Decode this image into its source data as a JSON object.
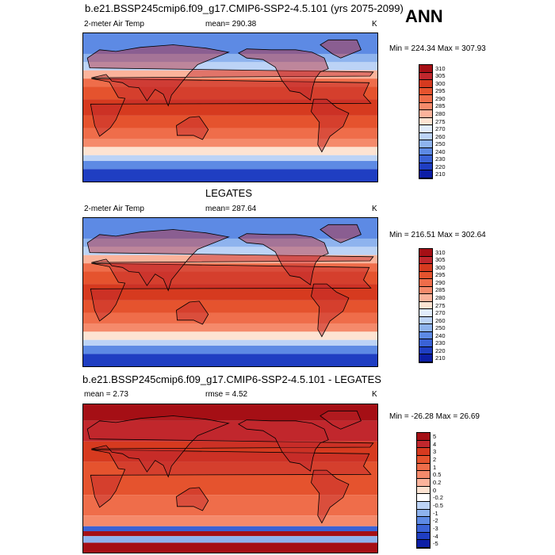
{
  "ann_label": "ANN",
  "panels": [
    {
      "title": "b.e21.BSSP245cmip6.f09_g17.CMIP6-SSP2-4.5.101 (yrs 2075-2099)",
      "left": "2-meter Air Temp",
      "center": "mean= 290.38",
      "right": "K",
      "minmax": "Min = 224.34 Max = 307.93",
      "kind": "abs",
      "levels": [
        "310",
        "305",
        "300",
        "295",
        "290",
        "285",
        "280",
        "275",
        "270",
        "260",
        "250",
        "240",
        "230",
        "220",
        "210"
      ],
      "colors": [
        "#a50f15",
        "#c1272d",
        "#d63a1f",
        "#e5532e",
        "#ef6d4a",
        "#f58a6b",
        "#fbb39b",
        "#fde3d2",
        "#e1ecfb",
        "#bcd3f6",
        "#8eb3ee",
        "#5d8ae4",
        "#3a62d6",
        "#1f3ec2",
        "#0c1ea6"
      ]
    },
    {
      "title": "LEGATES",
      "left": "2-meter Air Temp",
      "center": "mean= 287.64",
      "right": "K",
      "minmax": "Min = 216.51 Max = 302.64",
      "kind": "abs",
      "levels": [
        "310",
        "305",
        "300",
        "295",
        "290",
        "285",
        "280",
        "275",
        "270",
        "260",
        "250",
        "240",
        "230",
        "220",
        "210"
      ],
      "colors": [
        "#a50f15",
        "#c1272d",
        "#d63a1f",
        "#e5532e",
        "#ef6d4a",
        "#f58a6b",
        "#fbb39b",
        "#fde3d2",
        "#e1ecfb",
        "#bcd3f6",
        "#8eb3ee",
        "#5d8ae4",
        "#3a62d6",
        "#1f3ec2",
        "#0c1ea6"
      ]
    },
    {
      "title": "b.e21.BSSP245cmip6.f09_g17.CMIP6-SSP2-4.5.101 - LEGATES",
      "left": "mean =   2.73",
      "center": "rmse =   4.52",
      "right": "K",
      "minmax": "Min = -26.28 Max =  26.69",
      "kind": "diff",
      "levels": [
        "5",
        "4",
        "3",
        "2",
        "1",
        "0.5",
        "0.2",
        "0",
        "-0.2",
        "-0.5",
        "-1",
        "-2",
        "-3",
        "-4",
        "-5"
      ],
      "colors": [
        "#a50f15",
        "#c1272d",
        "#d63a1f",
        "#e5532e",
        "#ef6d4a",
        "#f58a6b",
        "#fbb39b",
        "#fde3d2",
        "#ffffff",
        "#bcd3f6",
        "#8eb3ee",
        "#5d8ae4",
        "#3a62d6",
        "#1f3ec2",
        "#0c1ea6"
      ]
    }
  ]
}
